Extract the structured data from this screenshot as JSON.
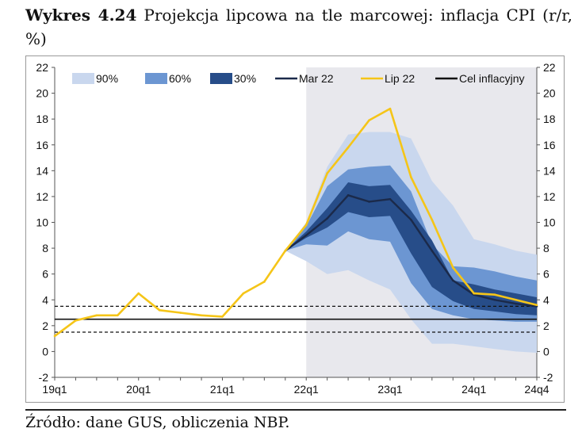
{
  "figure": {
    "label": "Wykres 4.24",
    "title": "Projekcja lipcowa na tle marcowej: inflacja CPI (r/r, %)",
    "source": "Źródło: dane GUS, obliczenia NBP."
  },
  "chart_data": {
    "type": "line",
    "ylim": [
      -2,
      22
    ],
    "yticks": [
      "-2",
      "0",
      "2",
      "4",
      "6",
      "8",
      "10",
      "12",
      "14",
      "16",
      "18",
      "20",
      "22"
    ],
    "xlim": [
      0,
      23
    ],
    "xtick_labels": [
      "19q1",
      "20q1",
      "21q1",
      "22q1",
      "23q1",
      "24q1",
      "24q4"
    ],
    "xtick_pos": [
      0,
      4,
      8,
      12,
      16,
      20,
      23
    ],
    "projection_start": 12,
    "legend": {
      "placement": "top",
      "items": [
        {
          "label": "90%",
          "kind": "band",
          "color": "#c9d7ee"
        },
        {
          "label": "60%",
          "kind": "band",
          "color": "#6c96d2"
        },
        {
          "label": "30%",
          "kind": "band",
          "color": "#274d89"
        },
        {
          "label": "Mar 22",
          "kind": "line",
          "color": "#1b2a4a"
        },
        {
          "label": "Lip 22",
          "kind": "line",
          "color": "#f5c518"
        },
        {
          "label": "Cel inflacyjny",
          "kind": "line",
          "color": "#111111"
        }
      ]
    },
    "bands": {
      "x": [
        11,
        12,
        13,
        14,
        15,
        16,
        17,
        18,
        19,
        20,
        21,
        22,
        23
      ],
      "p90": {
        "lower": [
          7.8,
          7.0,
          6.0,
          6.3,
          5.5,
          4.8,
          2.5,
          0.6,
          0.6,
          0.4,
          0.2,
          0.0,
          -0.1
        ],
        "upper": [
          7.8,
          10.0,
          14.3,
          16.8,
          17.0,
          17.0,
          16.5,
          13.2,
          11.3,
          8.7,
          8.3,
          7.8,
          7.5
        ]
      },
      "p60": {
        "lower": [
          7.8,
          8.3,
          8.2,
          9.3,
          8.7,
          8.5,
          5.3,
          3.3,
          2.8,
          2.5,
          2.4,
          2.3,
          2.3
        ],
        "upper": [
          7.8,
          9.7,
          12.8,
          14.1,
          14.3,
          14.4,
          12.4,
          8.3,
          6.6,
          6.5,
          6.2,
          5.8,
          5.5
        ]
      },
      "p30": {
        "lower": [
          7.8,
          8.8,
          9.6,
          10.8,
          10.4,
          10.5,
          7.6,
          5.0,
          3.9,
          3.3,
          3.1,
          2.9,
          2.8
        ],
        "upper": [
          7.8,
          9.3,
          11.1,
          13.1,
          12.8,
          12.9,
          10.9,
          8.6,
          5.5,
          5.2,
          4.8,
          4.5,
          4.2
        ]
      }
    },
    "series": [
      {
        "name": "Mar 22",
        "color": "#1b2a4a",
        "x": [
          11,
          12,
          13,
          14,
          15,
          16,
          17,
          18,
          19,
          20,
          21,
          22,
          23
        ],
        "values": [
          7.8,
          9.0,
          10.3,
          12.1,
          11.6,
          11.8,
          10.2,
          7.8,
          5.5,
          4.4,
          4.0,
          3.7,
          3.5
        ]
      },
      {
        "name": "Lip 22",
        "color": "#f5c518",
        "x": [
          0,
          1,
          2,
          3,
          4,
          5,
          6,
          7,
          8,
          9,
          10,
          11,
          12,
          13,
          14,
          15,
          16,
          17,
          18,
          19,
          20,
          21,
          22,
          23
        ],
        "values": [
          1.2,
          2.4,
          2.8,
          2.8,
          4.5,
          3.2,
          3.0,
          2.8,
          2.7,
          4.5,
          5.4,
          7.8,
          9.8,
          13.8,
          15.8,
          17.9,
          18.8,
          13.5,
          10.2,
          6.5,
          4.5,
          4.4,
          4.0,
          3.6
        ]
      }
    ],
    "target": {
      "name": "Cel inflacyjny",
      "value": 2.5,
      "band": [
        1.5,
        3.5
      ]
    }
  }
}
